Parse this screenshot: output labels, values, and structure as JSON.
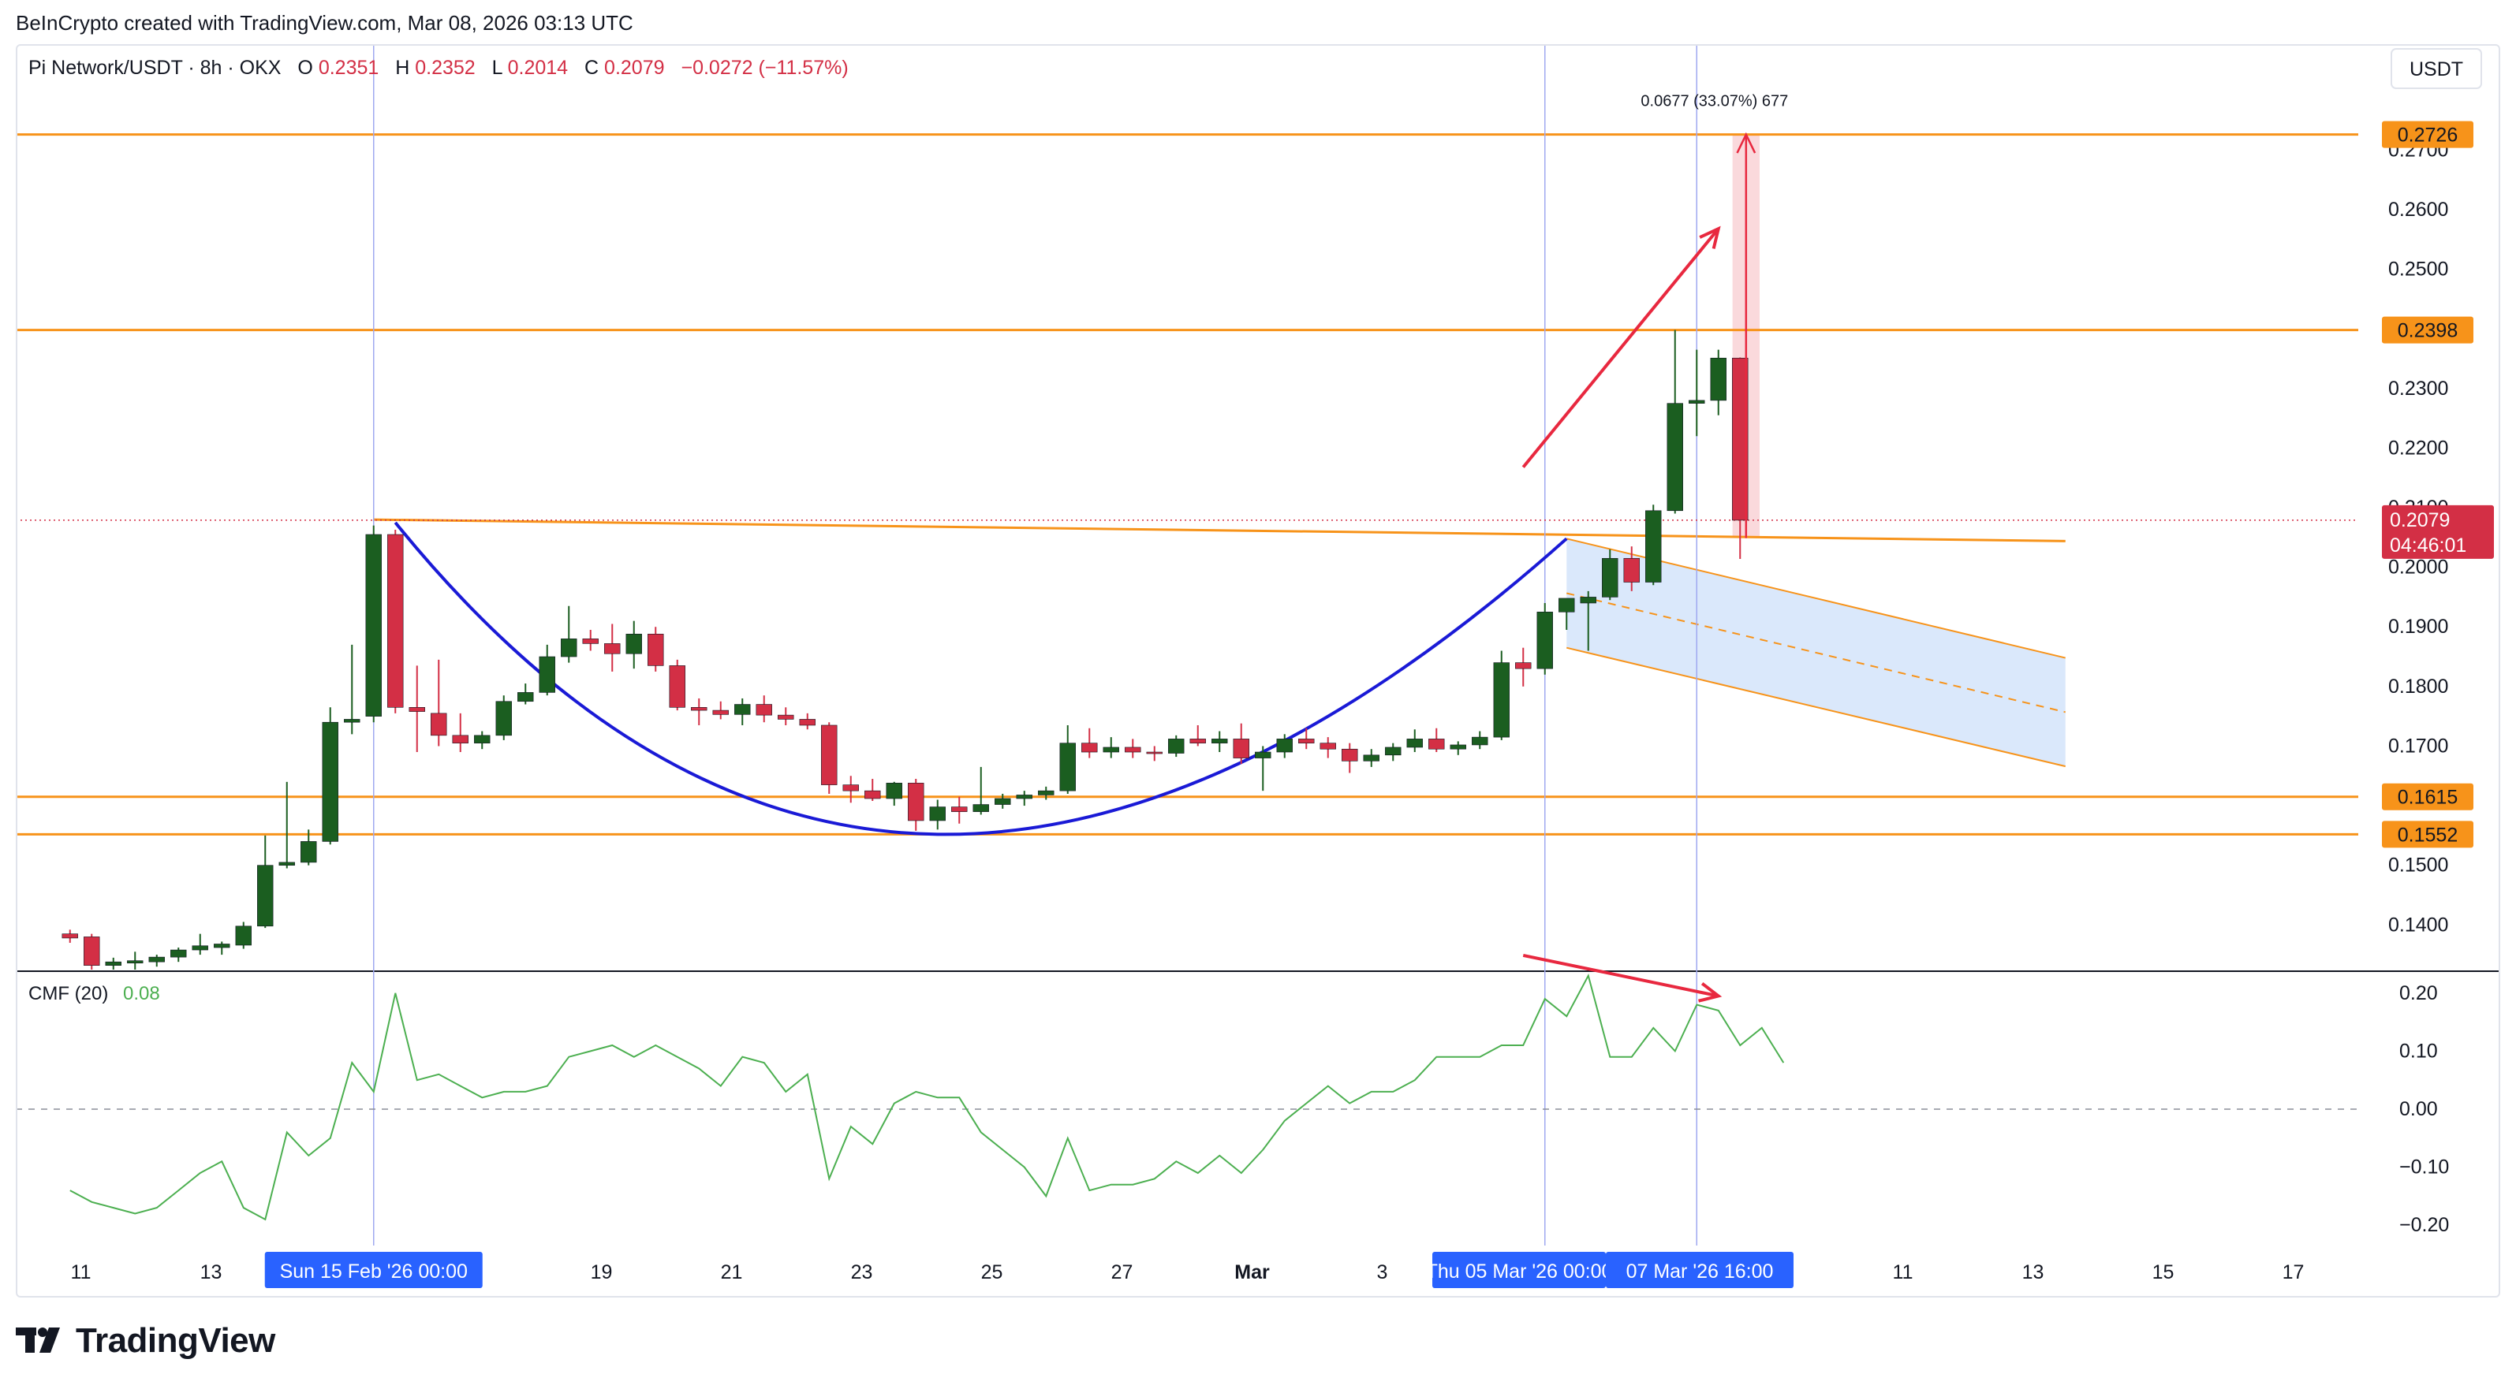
{
  "header": {
    "attribution": "BeInCrypto created with TradingView.com, Mar 08, 2026 03:13 UTC"
  },
  "legend": {
    "symbol": "Pi Network/USDT · 8h · OKX",
    "o_label": "O",
    "o_value": "0.2351",
    "h_label": "H",
    "h_value": "0.2352",
    "l_label": "L",
    "l_value": "0.2014",
    "c_label": "C",
    "c_value": "0.2079",
    "change": "−0.0272 (−11.57%)"
  },
  "currency_button": "USDT",
  "footer": {
    "brand": "TradingView"
  },
  "colors": {
    "up": "#1b5e20",
    "down": "#d32f45",
    "level": "#f7931a",
    "cup": "#1a1ad6",
    "arrow": "#e8283f",
    "cmf": "#4caf50",
    "crosshair": "#9fa8f0",
    "date_tag": "#2962ff"
  },
  "chart_data": {
    "type": "candlestick",
    "timeframe": "8h",
    "y_axis": {
      "ticks": [
        "0.2700",
        "0.2600",
        "0.2500",
        "0.2300",
        "0.2200",
        "0.2100",
        "0.2000",
        "0.1900",
        "0.1800",
        "0.1700",
        "0.1500",
        "0.1400"
      ],
      "range": [
        0.1325,
        0.2875
      ]
    },
    "x_axis": {
      "ticks": [
        "11",
        "13",
        "17",
        "19",
        "21",
        "23",
        "25",
        "27",
        "Mar",
        "3",
        "11",
        "13",
        "15",
        "17"
      ],
      "start": "Feb 10 2026",
      "end": "Mar 18 2026"
    },
    "date_tags": [
      "Sun 15 Feb '26   00:00",
      "Thu 05 Mar '26   00:00",
      "07 Mar '26   16:00"
    ],
    "levels": [
      {
        "value": 0.2726,
        "label": "0.2726"
      },
      {
        "value": 0.2398,
        "label": "0.2398"
      },
      {
        "value": 0.1615,
        "label": "0.1615"
      },
      {
        "value": 0.1552,
        "label": "0.1552"
      }
    ],
    "last_price": {
      "value": 0.2079,
      "label": "0.2079",
      "countdown": "04:46:01"
    },
    "measure_label": "0.0677 (33.07%) 677",
    "candles": [
      {
        "t": "2026-02-10 16:00",
        "o": 0.1385,
        "h": 0.1392,
        "l": 0.137,
        "c": 0.1378
      },
      {
        "t": "2026-02-11 00:00",
        "o": 0.138,
        "h": 0.1385,
        "l": 0.1325,
        "c": 0.1332
      },
      {
        "t": "2026-02-11 08:00",
        "o": 0.1332,
        "h": 0.1345,
        "l": 0.132,
        "c": 0.1338
      },
      {
        "t": "2026-02-11 16:00",
        "o": 0.1336,
        "h": 0.1355,
        "l": 0.1325,
        "c": 0.134
      },
      {
        "t": "2026-02-12 00:00",
        "o": 0.1338,
        "h": 0.135,
        "l": 0.133,
        "c": 0.1346
      },
      {
        "t": "2026-02-12 08:00",
        "o": 0.1346,
        "h": 0.1362,
        "l": 0.1338,
        "c": 0.1358
      },
      {
        "t": "2026-02-12 16:00",
        "o": 0.1358,
        "h": 0.1385,
        "l": 0.135,
        "c": 0.1365
      },
      {
        "t": "2026-02-13 00:00",
        "o": 0.1362,
        "h": 0.1372,
        "l": 0.135,
        "c": 0.1368
      },
      {
        "t": "2026-02-13 08:00",
        "o": 0.1366,
        "h": 0.1405,
        "l": 0.136,
        "c": 0.1398
      },
      {
        "t": "2026-02-13 16:00",
        "o": 0.1398,
        "h": 0.155,
        "l": 0.1395,
        "c": 0.15
      },
      {
        "t": "2026-02-14 00:00",
        "o": 0.15,
        "h": 0.164,
        "l": 0.1495,
        "c": 0.1505
      },
      {
        "t": "2026-02-14 08:00",
        "o": 0.1505,
        "h": 0.156,
        "l": 0.15,
        "c": 0.154
      },
      {
        "t": "2026-02-14 16:00",
        "o": 0.154,
        "h": 0.1765,
        "l": 0.1535,
        "c": 0.174
      },
      {
        "t": "2026-02-15 00:00",
        "o": 0.174,
        "h": 0.187,
        "l": 0.172,
        "c": 0.1745
      },
      {
        "t": "2026-02-15 08:00",
        "o": 0.175,
        "h": 0.207,
        "l": 0.174,
        "c": 0.2055
      },
      {
        "t": "2026-02-15 16:00",
        "o": 0.2055,
        "h": 0.2063,
        "l": 0.1755,
        "c": 0.1765
      },
      {
        "t": "2026-02-16 00:00",
        "o": 0.1765,
        "h": 0.1835,
        "l": 0.169,
        "c": 0.1758
      },
      {
        "t": "2026-02-16 08:00",
        "o": 0.1755,
        "h": 0.1845,
        "l": 0.17,
        "c": 0.1718
      },
      {
        "t": "2026-02-16 16:00",
        "o": 0.1718,
        "h": 0.1755,
        "l": 0.169,
        "c": 0.1705
      },
      {
        "t": "2026-02-17 00:00",
        "o": 0.1705,
        "h": 0.1725,
        "l": 0.1695,
        "c": 0.1718
      },
      {
        "t": "2026-02-17 08:00",
        "o": 0.1718,
        "h": 0.1785,
        "l": 0.171,
        "c": 0.1775
      },
      {
        "t": "2026-02-17 16:00",
        "o": 0.1775,
        "h": 0.1805,
        "l": 0.177,
        "c": 0.179
      },
      {
        "t": "2026-02-18 00:00",
        "o": 0.179,
        "h": 0.187,
        "l": 0.1785,
        "c": 0.185
      },
      {
        "t": "2026-02-18 08:00",
        "o": 0.185,
        "h": 0.1935,
        "l": 0.184,
        "c": 0.188
      },
      {
        "t": "2026-02-18 16:00",
        "o": 0.188,
        "h": 0.1895,
        "l": 0.186,
        "c": 0.1872
      },
      {
        "t": "2026-02-19 00:00",
        "o": 0.1872,
        "h": 0.1905,
        "l": 0.1825,
        "c": 0.1855
      },
      {
        "t": "2026-02-19 08:00",
        "o": 0.1855,
        "h": 0.191,
        "l": 0.183,
        "c": 0.1888
      },
      {
        "t": "2026-02-19 16:00",
        "o": 0.1888,
        "h": 0.19,
        "l": 0.1825,
        "c": 0.1835
      },
      {
        "t": "2026-02-20 00:00",
        "o": 0.1835,
        "h": 0.1845,
        "l": 0.176,
        "c": 0.1765
      },
      {
        "t": "2026-02-20 08:00",
        "o": 0.1765,
        "h": 0.178,
        "l": 0.1735,
        "c": 0.176
      },
      {
        "t": "2026-02-20 16:00",
        "o": 0.176,
        "h": 0.1775,
        "l": 0.1745,
        "c": 0.1753
      },
      {
        "t": "2026-02-21 00:00",
        "o": 0.1753,
        "h": 0.178,
        "l": 0.1735,
        "c": 0.177
      },
      {
        "t": "2026-02-21 08:00",
        "o": 0.177,
        "h": 0.1785,
        "l": 0.174,
        "c": 0.1752
      },
      {
        "t": "2026-02-21 16:00",
        "o": 0.1752,
        "h": 0.1765,
        "l": 0.1735,
        "c": 0.1745
      },
      {
        "t": "2026-02-22 00:00",
        "o": 0.1745,
        "h": 0.1755,
        "l": 0.1728,
        "c": 0.1735
      },
      {
        "t": "2026-02-22 08:00",
        "o": 0.1735,
        "h": 0.174,
        "l": 0.162,
        "c": 0.1635
      },
      {
        "t": "2026-02-22 16:00",
        "o": 0.1635,
        "h": 0.165,
        "l": 0.1605,
        "c": 0.1625
      },
      {
        "t": "2026-02-23 00:00",
        "o": 0.1625,
        "h": 0.1645,
        "l": 0.1608,
        "c": 0.1612
      },
      {
        "t": "2026-02-23 08:00",
        "o": 0.1612,
        "h": 0.164,
        "l": 0.16,
        "c": 0.1638
      },
      {
        "t": "2026-02-23 16:00",
        "o": 0.1638,
        "h": 0.1645,
        "l": 0.1558,
        "c": 0.1575
      },
      {
        "t": "2026-02-24 00:00",
        "o": 0.1575,
        "h": 0.161,
        "l": 0.156,
        "c": 0.1598
      },
      {
        "t": "2026-02-24 08:00",
        "o": 0.1598,
        "h": 0.1615,
        "l": 0.157,
        "c": 0.159
      },
      {
        "t": "2026-02-24 16:00",
        "o": 0.159,
        "h": 0.1665,
        "l": 0.1585,
        "c": 0.1602
      },
      {
        "t": "2026-02-25 00:00",
        "o": 0.1602,
        "h": 0.162,
        "l": 0.1595,
        "c": 0.1612
      },
      {
        "t": "2026-02-25 08:00",
        "o": 0.1612,
        "h": 0.1625,
        "l": 0.16,
        "c": 0.1618
      },
      {
        "t": "2026-02-25 16:00",
        "o": 0.1618,
        "h": 0.1632,
        "l": 0.161,
        "c": 0.1625
      },
      {
        "t": "2026-02-26 00:00",
        "o": 0.1625,
        "h": 0.1735,
        "l": 0.162,
        "c": 0.1705
      },
      {
        "t": "2026-02-26 08:00",
        "o": 0.1705,
        "h": 0.173,
        "l": 0.168,
        "c": 0.169
      },
      {
        "t": "2026-02-26 16:00",
        "o": 0.169,
        "h": 0.1715,
        "l": 0.168,
        "c": 0.1698
      },
      {
        "t": "2026-02-27 00:00",
        "o": 0.1698,
        "h": 0.1712,
        "l": 0.168,
        "c": 0.169
      },
      {
        "t": "2026-02-27 08:00",
        "o": 0.169,
        "h": 0.17,
        "l": 0.1675,
        "c": 0.1688
      },
      {
        "t": "2026-02-27 16:00",
        "o": 0.1688,
        "h": 0.1718,
        "l": 0.1682,
        "c": 0.1712
      },
      {
        "t": "2026-02-28 00:00",
        "o": 0.1712,
        "h": 0.1735,
        "l": 0.17,
        "c": 0.1705
      },
      {
        "t": "2026-02-28 08:00",
        "o": 0.1705,
        "h": 0.1725,
        "l": 0.169,
        "c": 0.1712
      },
      {
        "t": "2026-02-28 16:00",
        "o": 0.1712,
        "h": 0.1738,
        "l": 0.167,
        "c": 0.168
      },
      {
        "t": "2026-03-01 00:00",
        "o": 0.168,
        "h": 0.17,
        "l": 0.1625,
        "c": 0.169
      },
      {
        "t": "2026-03-01 08:00",
        "o": 0.169,
        "h": 0.172,
        "l": 0.168,
        "c": 0.1712
      },
      {
        "t": "2026-03-01 16:00",
        "o": 0.1712,
        "h": 0.173,
        "l": 0.1695,
        "c": 0.1705
      },
      {
        "t": "2026-03-02 00:00",
        "o": 0.1705,
        "h": 0.1715,
        "l": 0.168,
        "c": 0.1695
      },
      {
        "t": "2026-03-02 08:00",
        "o": 0.1695,
        "h": 0.1705,
        "l": 0.1655,
        "c": 0.1675
      },
      {
        "t": "2026-03-02 16:00",
        "o": 0.1675,
        "h": 0.1695,
        "l": 0.1665,
        "c": 0.1685
      },
      {
        "t": "2026-03-03 00:00",
        "o": 0.1685,
        "h": 0.1705,
        "l": 0.1675,
        "c": 0.1698
      },
      {
        "t": "2026-03-03 08:00",
        "o": 0.1698,
        "h": 0.1728,
        "l": 0.169,
        "c": 0.1712
      },
      {
        "t": "2026-03-03 16:00",
        "o": 0.1712,
        "h": 0.173,
        "l": 0.169,
        "c": 0.1695
      },
      {
        "t": "2026-03-04 00:00",
        "o": 0.1695,
        "h": 0.1708,
        "l": 0.1685,
        "c": 0.1702
      },
      {
        "t": "2026-03-04 08:00",
        "o": 0.1702,
        "h": 0.1725,
        "l": 0.1695,
        "c": 0.1715
      },
      {
        "t": "2026-03-04 16:00",
        "o": 0.1715,
        "h": 0.186,
        "l": 0.171,
        "c": 0.184
      },
      {
        "t": "2026-03-05 00:00",
        "o": 0.184,
        "h": 0.1865,
        "l": 0.18,
        "c": 0.183
      },
      {
        "t": "2026-03-05 08:00",
        "o": 0.183,
        "h": 0.194,
        "l": 0.182,
        "c": 0.1925
      },
      {
        "t": "2026-03-05 16:00",
        "o": 0.1925,
        "h": 0.1945,
        "l": 0.1895,
        "c": 0.1948
      },
      {
        "t": "2026-03-06 00:00",
        "o": 0.194,
        "h": 0.196,
        "l": 0.186,
        "c": 0.195
      },
      {
        "t": "2026-03-06 08:00",
        "o": 0.195,
        "h": 0.203,
        "l": 0.1945,
        "c": 0.2015
      },
      {
        "t": "2026-03-06 16:00",
        "o": 0.2015,
        "h": 0.2035,
        "l": 0.196,
        "c": 0.1975
      },
      {
        "t": "2026-03-07 00:00",
        "o": 0.1975,
        "h": 0.2105,
        "l": 0.197,
        "c": 0.2095
      },
      {
        "t": "2026-03-07 08:00",
        "o": 0.2095,
        "h": 0.2398,
        "l": 0.209,
        "c": 0.2275
      },
      {
        "t": "2026-03-07 16:00",
        "o": 0.2275,
        "h": 0.2365,
        "l": 0.222,
        "c": 0.228
      },
      {
        "t": "2026-03-08 00:00",
        "o": 0.228,
        "h": 0.2365,
        "l": 0.2255,
        "c": 0.2351
      },
      {
        "t": "2026-03-08 08:00",
        "o": 0.2351,
        "h": 0.2352,
        "l": 0.2014,
        "c": 0.2079
      }
    ],
    "cmf": {
      "label": "CMF (20)",
      "value_label": "0.08",
      "ticks": [
        "0.20",
        "0.10",
        "0.00",
        "−0.10",
        "−0.20"
      ],
      "range": [
        -0.235,
        0.235
      ],
      "values": [
        -0.14,
        -0.16,
        -0.17,
        -0.18,
        -0.17,
        -0.14,
        -0.11,
        -0.09,
        -0.17,
        -0.19,
        -0.04,
        -0.08,
        -0.05,
        0.08,
        0.03,
        0.2,
        0.05,
        0.06,
        0.04,
        0.02,
        0.03,
        0.03,
        0.04,
        0.09,
        0.1,
        0.11,
        0.09,
        0.11,
        0.09,
        0.07,
        0.04,
        0.09,
        0.08,
        0.03,
        0.06,
        -0.12,
        -0.03,
        -0.06,
        0.01,
        0.03,
        0.02,
        0.02,
        -0.04,
        -0.07,
        -0.1,
        -0.15,
        -0.05,
        -0.14,
        -0.13,
        -0.13,
        -0.12,
        -0.09,
        -0.11,
        -0.08,
        -0.11,
        -0.07,
        -0.02,
        0.01,
        0.04,
        0.01,
        0.03,
        0.03,
        0.05,
        0.09,
        0.09,
        0.09,
        0.11,
        0.11,
        0.19,
        0.16,
        0.23,
        0.09,
        0.09,
        0.14,
        0.1,
        0.18,
        0.17,
        0.11,
        0.14,
        0.08
      ]
    }
  }
}
